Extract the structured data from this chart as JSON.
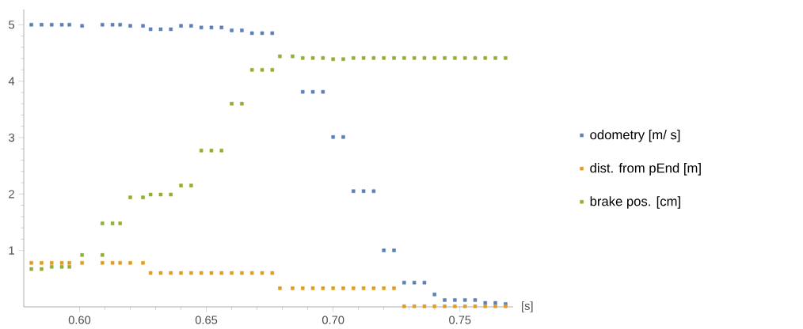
{
  "chart_data": {
    "type": "scatter",
    "xlabel": "[s]",
    "xlim": [
      0.578,
      0.771
    ],
    "ylim": [
      0,
      5.27
    ],
    "xticks": [
      {
        "value": 0.6,
        "label": "0.60"
      },
      {
        "value": 0.65,
        "label": "0.65"
      },
      {
        "value": 0.7,
        "label": "0.70"
      },
      {
        "value": 0.75,
        "label": "0.75"
      }
    ],
    "yticks": [
      1,
      2,
      3,
      4,
      5
    ],
    "grid": false,
    "legend": "right",
    "marker": "square",
    "series": [
      {
        "name": "odometry [m/ s]",
        "color": "#5e81b5",
        "x": [
          0.581,
          0.585,
          0.589,
          0.593,
          0.596,
          0.601,
          0.609,
          0.613,
          0.616,
          0.62,
          0.625,
          0.628,
          0.632,
          0.636,
          0.64,
          0.644,
          0.648,
          0.652,
          0.656,
          0.66,
          0.664,
          0.668,
          0.672,
          0.676,
          0.688,
          0.692,
          0.696,
          0.7,
          0.704,
          0.708,
          0.712,
          0.716,
          0.72,
          0.724,
          0.728,
          0.732,
          0.736,
          0.74,
          0.744,
          0.748,
          0.752,
          0.756,
          0.76,
          0.764,
          0.768
        ],
        "values": [
          5.0,
          5.0,
          5.0,
          5.0,
          5.0,
          4.98,
          5.0,
          5.0,
          5.0,
          4.98,
          4.98,
          4.92,
          4.92,
          4.92,
          4.98,
          4.98,
          4.95,
          4.95,
          4.95,
          4.9,
          4.9,
          4.85,
          4.85,
          4.85,
          3.81,
          3.81,
          3.81,
          3.01,
          3.01,
          2.05,
          2.05,
          2.05,
          1.0,
          1.0,
          0.43,
          0.43,
          0.43,
          0.22,
          0.12,
          0.12,
          0.12,
          0.12,
          0.07,
          0.07,
          0.05
        ]
      },
      {
        "name": "dist. from pEnd [m]",
        "color": "#e19c24",
        "x": [
          0.581,
          0.585,
          0.589,
          0.593,
          0.596,
          0.601,
          0.609,
          0.613,
          0.616,
          0.62,
          0.625,
          0.628,
          0.632,
          0.636,
          0.64,
          0.644,
          0.648,
          0.652,
          0.656,
          0.66,
          0.664,
          0.668,
          0.672,
          0.676,
          0.679,
          0.684,
          0.688,
          0.692,
          0.696,
          0.7,
          0.704,
          0.708,
          0.712,
          0.716,
          0.72,
          0.724,
          0.728,
          0.732,
          0.736,
          0.74,
          0.744,
          0.748,
          0.752,
          0.756,
          0.76,
          0.764,
          0.768
        ],
        "values": [
          0.78,
          0.78,
          0.78,
          0.78,
          0.78,
          0.78,
          0.78,
          0.78,
          0.78,
          0.78,
          0.78,
          0.6,
          0.6,
          0.6,
          0.6,
          0.6,
          0.6,
          0.6,
          0.6,
          0.6,
          0.6,
          0.6,
          0.6,
          0.6,
          0.33,
          0.33,
          0.33,
          0.33,
          0.33,
          0.33,
          0.33,
          0.33,
          0.33,
          0.33,
          0.33,
          0.33,
          0.01,
          0.01,
          0.01,
          0.01,
          0.01,
          0.01,
          0.01,
          0.01,
          0.01,
          0.01,
          0.01
        ]
      },
      {
        "name": "brake pos. [cm]",
        "color": "#8fb032",
        "x": [
          0.581,
          0.585,
          0.589,
          0.593,
          0.596,
          0.601,
          0.609,
          0.609,
          0.613,
          0.616,
          0.62,
          0.625,
          0.628,
          0.632,
          0.636,
          0.64,
          0.644,
          0.648,
          0.652,
          0.656,
          0.66,
          0.664,
          0.668,
          0.672,
          0.676,
          0.679,
          0.684,
          0.688,
          0.692,
          0.696,
          0.7,
          0.704,
          0.708,
          0.712,
          0.716,
          0.72,
          0.724,
          0.728,
          0.732,
          0.736,
          0.74,
          0.744,
          0.748,
          0.752,
          0.756,
          0.76,
          0.764,
          0.768
        ],
        "values": [
          0.67,
          0.67,
          0.71,
          0.71,
          0.71,
          0.92,
          0.92,
          1.48,
          1.48,
          1.48,
          1.94,
          1.94,
          1.99,
          1.99,
          1.99,
          2.15,
          2.15,
          2.77,
          2.77,
          2.77,
          3.6,
          3.6,
          4.2,
          4.2,
          4.2,
          4.44,
          4.44,
          4.41,
          4.41,
          4.41,
          4.39,
          4.39,
          4.41,
          4.41,
          4.41,
          4.41,
          4.41,
          4.41,
          4.41,
          4.41,
          4.41,
          4.41,
          4.41,
          4.41,
          4.41,
          4.41,
          4.41,
          4.41
        ]
      }
    ]
  }
}
